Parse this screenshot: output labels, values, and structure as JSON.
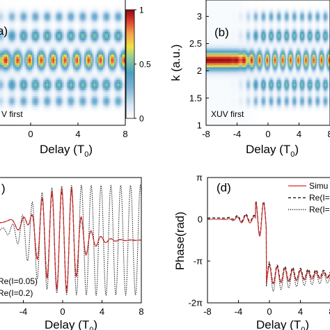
{
  "figure": {
    "panels": {
      "a": {
        "letter": "a)"
      },
      "b": {
        "letter": "(b)"
      },
      "c": {
        "letter": ")"
      },
      "d": {
        "letter": "(d)"
      }
    }
  },
  "chart_data": [
    {
      "panel": "a",
      "type": "heatmap",
      "xlabel_main": "Delay (T",
      "xlabel_sub": "0",
      "xlabel_close": ")",
      "ylabel": "",
      "xticks": [
        "-4",
        "0",
        "4",
        "8"
      ],
      "xtick_values": [
        -4,
        0,
        4,
        8
      ],
      "xlim": [
        -8,
        8
      ],
      "ylim": [
        1.0,
        3.3
      ],
      "annotation": "V first",
      "colorbar": {
        "ticks": [
          "1",
          "0.5",
          "0"
        ],
        "tick_values": [
          1,
          0.5,
          0
        ],
        "range": [
          0,
          1
        ]
      },
      "center_k": 2.2,
      "fringe_delay_start": -2.5
    },
    {
      "panel": "b",
      "type": "heatmap",
      "xlabel_main": "Delay (T",
      "xlabel_sub": "0",
      "xlabel_close": ")",
      "ylabel": "k (a.u.)",
      "xticks": [
        "-8",
        "-4",
        "0",
        "4",
        "8"
      ],
      "xtick_values": [
        -8,
        -4,
        0,
        4,
        8
      ],
      "yticks": [
        "3",
        "2.5",
        "2",
        "1.5",
        "1"
      ],
      "ytick_values": [
        3,
        2.5,
        2,
        1.5,
        1
      ],
      "xlim": [
        -8,
        8
      ],
      "ylim": [
        1.0,
        3.3
      ],
      "annotation": "XUV first",
      "center_k": 2.2,
      "fringe_delay_start": -2.5
    },
    {
      "panel": "c",
      "type": "line",
      "xlabel_main": "Delay (T",
      "xlabel_sub": "0",
      "xlabel_close": ")",
      "xticks": [
        "-4",
        "0",
        "4",
        "8"
      ],
      "xtick_values": [
        -4,
        0,
        4,
        8
      ],
      "xlim": [
        -8,
        8
      ],
      "ylim": [
        -1.2,
        1.2
      ],
      "legend": [
        {
          "label": "Re(I=0.05)",
          "style": "dashed"
        },
        {
          "label": "Re(I=0.2)",
          "style": "dotted"
        }
      ],
      "colors": {
        "simulation": "#d62728",
        "dashed": "#000000",
        "dotted": "#000000"
      }
    },
    {
      "panel": "d",
      "type": "line",
      "xlabel_main": "Delay (T",
      "xlabel_sub": "0",
      "xlabel_close": ")",
      "ylabel": "Phase(rad)",
      "xticks": [
        "-8",
        "-4",
        "0",
        "4",
        "8"
      ],
      "xtick_values": [
        -8,
        -4,
        0,
        4,
        8
      ],
      "yticks": [
        "π",
        "0",
        "-π",
        "-2π"
      ],
      "ytick_values": [
        3.1416,
        0,
        -3.1416,
        -6.2832
      ],
      "xlim": [
        -8,
        8
      ],
      "ylim": [
        -6.2832,
        3.1416
      ],
      "legend": [
        {
          "label": "Simu",
          "style": "solid"
        },
        {
          "label": "Re(I=",
          "style": "dashed"
        },
        {
          "label": "Re(I=",
          "style": "dotted"
        }
      ],
      "colors": {
        "simulation": "#d62728",
        "dashed": "#000000",
        "dotted": "#000000"
      }
    }
  ]
}
